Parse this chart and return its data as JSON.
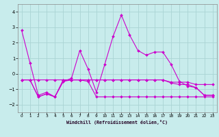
{
  "title": "Windchill (Refroidissement éolien,°C)",
  "bg_color": "#c8ecec",
  "grid_color": "#aad4d4",
  "line_color": "#cc00cc",
  "xlim": [
    -0.5,
    23.5
  ],
  "ylim": [
    -2.5,
    4.5
  ],
  "yticks": [
    -2,
    -1,
    0,
    1,
    2,
    3,
    4
  ],
  "xticks": [
    0,
    1,
    2,
    3,
    4,
    5,
    6,
    7,
    8,
    9,
    10,
    11,
    12,
    13,
    14,
    15,
    16,
    17,
    18,
    19,
    20,
    21,
    22,
    23
  ],
  "series": [
    [
      2.8,
      0.7,
      -1.4,
      -1.2,
      -1.5,
      -0.5,
      -0.3,
      1.5,
      0.3,
      -1.2,
      0.6,
      2.4,
      3.8,
      2.5,
      1.5,
      1.2,
      1.4,
      1.4,
      0.6,
      -0.5,
      -0.8,
      -0.9,
      -1.4,
      -1.4
    ],
    [
      -0.4,
      -0.4,
      -0.4,
      -0.4,
      -0.4,
      -0.4,
      -0.4,
      -0.4,
      -0.4,
      -0.4,
      -0.4,
      -0.4,
      -0.4,
      -0.4,
      -0.4,
      -0.4,
      -0.4,
      -0.4,
      -0.55,
      -0.55,
      -0.55,
      -0.7,
      -0.7,
      -0.7
    ],
    [
      -0.4,
      -0.4,
      -1.5,
      -1.3,
      -1.5,
      -0.5,
      -0.4,
      -0.4,
      -0.5,
      -1.5,
      -1.5,
      -1.5,
      -1.5,
      -1.5,
      -1.5,
      -1.5,
      -1.5,
      -1.5,
      -1.5,
      -1.5,
      -1.5,
      -1.5,
      -1.5,
      -1.5
    ],
    [
      -0.4,
      -0.4,
      -1.5,
      -1.3,
      -1.5,
      -0.4,
      -0.4,
      -0.4,
      -0.4,
      -0.4,
      -0.4,
      -0.4,
      -0.4,
      -0.4,
      -0.4,
      -0.4,
      -0.4,
      -0.4,
      -0.6,
      -0.7,
      -0.7,
      -0.9,
      -1.4,
      -1.4
    ]
  ]
}
